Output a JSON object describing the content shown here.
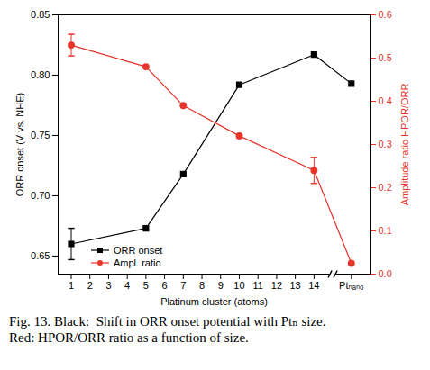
{
  "chart_data": {
    "type": "line",
    "xlabel": "Platinum cluster (atoms)",
    "ylabel": "ORR onset (V vs. NHE)",
    "y2label": "Amplitude ratio HPOR/ORR",
    "caption": "Fig. 13. Black:  Shift in ORR onset potential with Ptₙ size.  Red: HPOR/ORR ratio as a function of size.",
    "x": [
      1,
      5,
      7,
      10,
      14,
      16
    ],
    "xlim": [
      0.3,
      17
    ],
    "xticks": [
      1,
      2,
      3,
      4,
      5,
      6,
      7,
      8,
      9,
      10,
      11,
      12,
      13,
      14,
      {
        "value": 16,
        "label": "Ptₙₐₙₒ"
      }
    ],
    "ylim": [
      0.635,
      0.85
    ],
    "yticks": [
      0.65,
      {
        "value": 0.7,
        "label": "0.70"
      },
      0.75,
      {
        "value": 0.8,
        "label": "0.80"
      },
      0.85
    ],
    "y2lim": [
      0,
      0.6
    ],
    "y2ticks": [
      {
        "value": 0,
        "label": "0.0"
      },
      0.1,
      0.2,
      0.3,
      0.4,
      0.5,
      0.6
    ],
    "legend": "lower left",
    "series": [
      {
        "name": "ORR onset",
        "color": "#000000",
        "marker": "square",
        "line_style": "solid",
        "values": [
          0.66,
          0.673,
          0.718,
          0.792,
          0.817,
          0.793
        ],
        "errors": [
          0.013,
          null,
          null,
          null,
          null,
          null
        ]
      },
      {
        "name": "Ampl. ratio",
        "color": "#e8342a",
        "marker": "circle",
        "line_style": "solid",
        "axis": "y2",
        "values": [
          0.53,
          0.48,
          0.39,
          0.32,
          0.24,
          0.025
        ],
        "errors": [
          0.025,
          null,
          null,
          null,
          0.03,
          null
        ]
      }
    ]
  }
}
